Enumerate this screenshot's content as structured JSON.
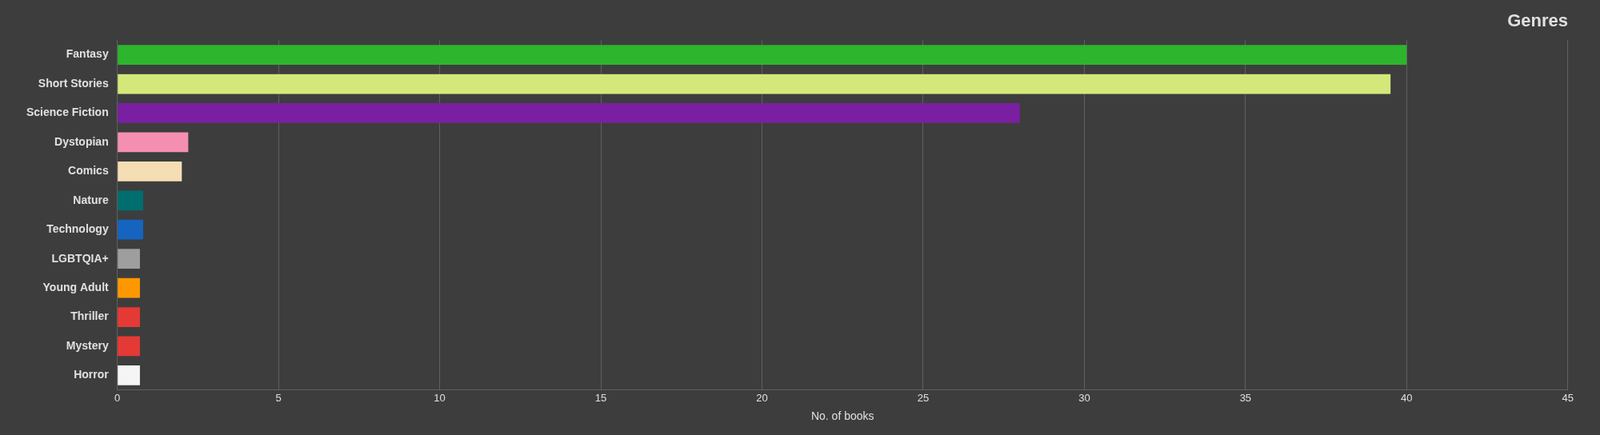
{
  "chart_data": {
    "type": "bar",
    "orientation": "horizontal",
    "title": "Genres",
    "xlabel": "No. of books",
    "categories": [
      "Fantasy",
      "Short Stories",
      "Science Fiction",
      "Dystopian",
      "Comics",
      "Nature",
      "Technology",
      "LGBTQIA+",
      "Young Adult",
      "Thriller",
      "Mystery",
      "Horror"
    ],
    "values": [
      40,
      39.5,
      28,
      2.2,
      2.0,
      0.8,
      0.8,
      0.7,
      0.7,
      0.7,
      0.7,
      0.7
    ],
    "colors": [
      "#2db52d",
      "#d4e87a",
      "#7b1fa2",
      "#f48fb1",
      "#f5deb3",
      "#006e6e",
      "#1565c0",
      "#9e9e9e",
      "#ff9800",
      "#e53935",
      "#e53935",
      "#f5f5f5"
    ],
    "xlim": [
      0,
      45
    ],
    "xticks": [
      0,
      5,
      10,
      15,
      20,
      25,
      30,
      35,
      40,
      45
    ],
    "grid": true
  }
}
